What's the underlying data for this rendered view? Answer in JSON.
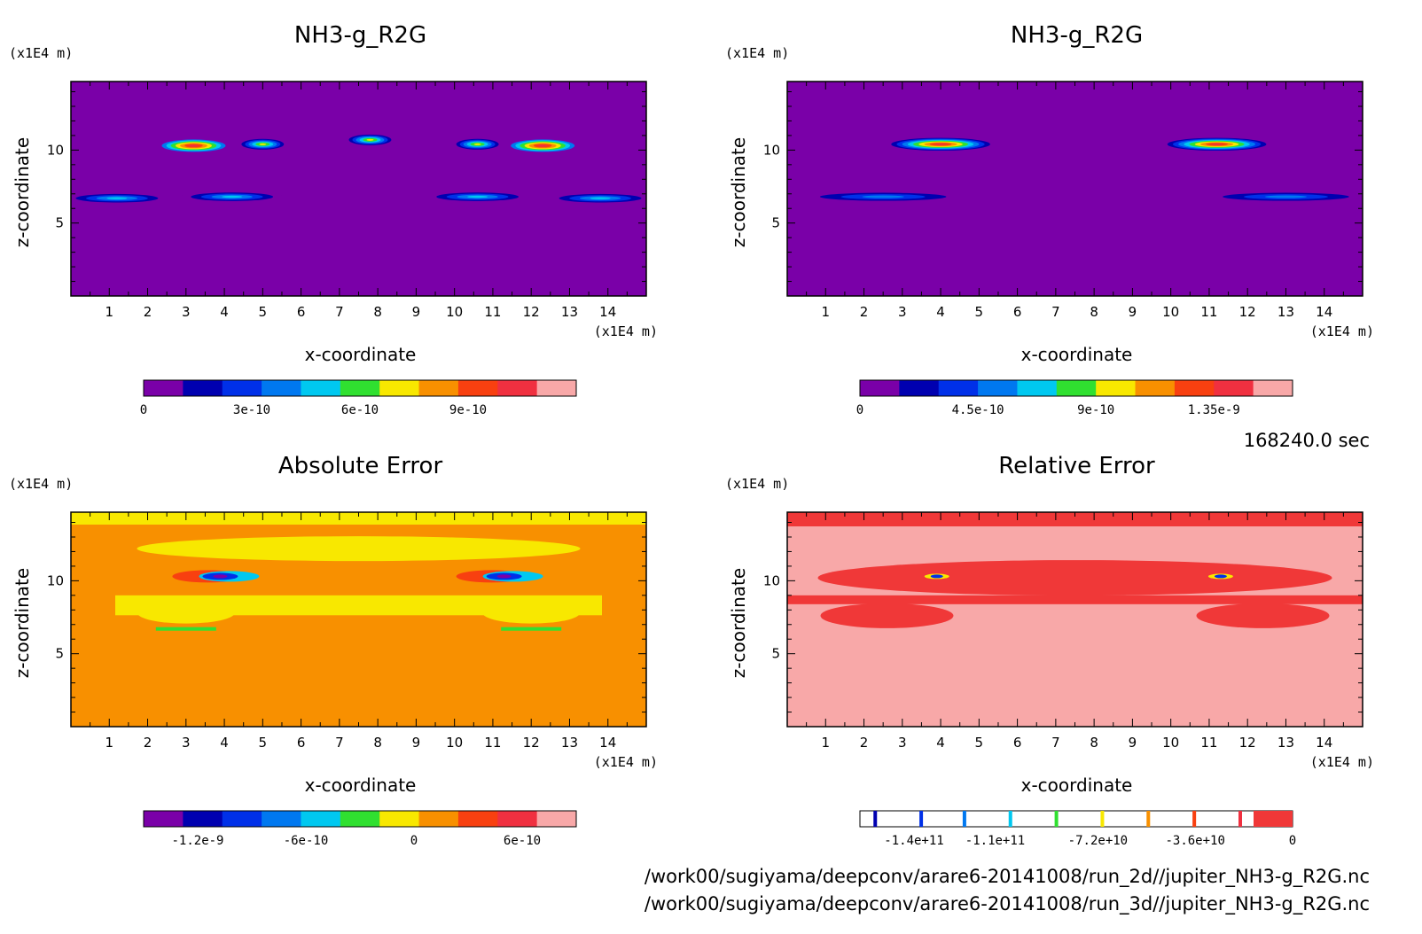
{
  "palette": {
    "seq12": [
      "#7a00a8",
      "#0000b0",
      "#0030e8",
      "#0078f0",
      "#00c8f0",
      "#30e030",
      "#f8e800",
      "#f89000",
      "#f84010",
      "#f03040",
      "#f8a8a8"
    ],
    "rel": {
      "bg": "#f8a8a8",
      "band": "#f03838",
      "line": "#000000"
    }
  },
  "footer": {
    "time": "168240.0 sec",
    "path1": "/work00/sugiyama/deepconv/arare6-20141008/run_2d//jupiter_NH3-g_R2G.nc",
    "path2": "/work00/sugiyama/deepconv/arare6-20141008/run_3d//jupiter_NH3-g_R2G.nc"
  },
  "chart_data": [
    {
      "type": "heatmap",
      "title": "NH3-g_R2G",
      "xlabel": "x-coordinate",
      "ylabel": "z-coordinate",
      "xunit": "(x1E4 m)",
      "yunit": "(x1E4 m)",
      "xticks": [
        "1",
        "2",
        "3",
        "4",
        "5",
        "6",
        "7",
        "8",
        "9",
        "10",
        "11",
        "12",
        "13",
        "14"
      ],
      "yticks": [
        "5",
        "10"
      ],
      "xlim": [
        0,
        15
      ],
      "ylim": [
        0,
        14.7
      ],
      "colorbar": {
        "ticks": [
          "0",
          "3e-10",
          "6e-10",
          "9e-10"
        ],
        "range": [
          0,
          1.2e-09
        ]
      },
      "features": [
        {
          "x": 3.2,
          "z": 10.3,
          "value": 1e-09
        },
        {
          "x": 5.0,
          "z": 10.4,
          "value": 4e-10
        },
        {
          "x": 7.8,
          "z": 10.7,
          "value": 1.5e-10
        },
        {
          "x": 10.6,
          "z": 10.4,
          "value": 4e-10
        },
        {
          "x": 12.3,
          "z": 10.3,
          "value": 1e-09
        },
        {
          "x": 1.2,
          "z": 6.7,
          "value": 5e-10
        },
        {
          "x": 4.2,
          "z": 6.8,
          "value": 3e-10
        },
        {
          "x": 10.6,
          "z": 6.8,
          "value": 3e-10
        },
        {
          "x": 13.8,
          "z": 6.7,
          "value": 5e-10
        }
      ]
    },
    {
      "type": "heatmap",
      "title": "NH3-g_R2G",
      "xlabel": "x-coordinate",
      "ylabel": "z-coordinate",
      "xunit": "(x1E4 m)",
      "yunit": "(x1E4 m)",
      "xticks": [
        "1",
        "2",
        "3",
        "4",
        "5",
        "6",
        "7",
        "8",
        "9",
        "10",
        "11",
        "12",
        "13",
        "14"
      ],
      "yticks": [
        "5",
        "10"
      ],
      "xlim": [
        0,
        15
      ],
      "ylim": [
        0,
        14.7
      ],
      "colorbar": {
        "ticks": [
          "0",
          "4.5e-10",
          "9e-10",
          "1.35e-9"
        ],
        "range": [
          0,
          1.65e-09
        ]
      },
      "features": [
        {
          "x": 4.0,
          "z": 10.4,
          "value": 1.4e-09
        },
        {
          "x": 11.2,
          "z": 10.4,
          "value": 1.4e-09
        },
        {
          "x": 2.5,
          "z": 6.8,
          "value": 3e-10
        },
        {
          "x": 13.0,
          "z": 6.8,
          "value": 3e-10
        }
      ]
    },
    {
      "type": "heatmap",
      "title": "Absolute Error",
      "xlabel": "x-coordinate",
      "ylabel": "z-coordinate",
      "xunit": "(x1E4 m)",
      "yunit": "(x1E4 m)",
      "xticks": [
        "1",
        "2",
        "3",
        "4",
        "5",
        "6",
        "7",
        "8",
        "9",
        "10",
        "11",
        "12",
        "13",
        "14"
      ],
      "yticks": [
        "5",
        "10"
      ],
      "xlim": [
        0,
        15
      ],
      "ylim": [
        0,
        14.7
      ],
      "colorbar": {
        "ticks": [
          "-1.2e-9",
          "-6e-10",
          "0",
          "6e-10"
        ],
        "range": [
          -1.5e-09,
          9e-10
        ]
      },
      "features": [
        {
          "x": 3.8,
          "z": 10.3,
          "value": -1.2e-09
        },
        {
          "x": 11.2,
          "z": 10.3,
          "value": -1.2e-09
        },
        {
          "x": 3.0,
          "z": 6.7,
          "value": -3e-10
        },
        {
          "x": 12.0,
          "z": 6.7,
          "value": -3e-10
        }
      ]
    },
    {
      "type": "heatmap",
      "title": "Relative Error",
      "xlabel": "x-coordinate",
      "ylabel": "z-coordinate",
      "xunit": "(x1E4 m)",
      "yunit": "(x1E4 m)",
      "xticks": [
        "1",
        "2",
        "3",
        "4",
        "5",
        "6",
        "7",
        "8",
        "9",
        "10",
        "11",
        "12",
        "13",
        "14"
      ],
      "yticks": [
        "5",
        "10"
      ],
      "xlim": [
        0,
        15
      ],
      "ylim": [
        0,
        14.7
      ],
      "colorbar": {
        "ticks": [
          "-1.4e+11",
          "-1.1e+11",
          "-7.2e+10",
          "-3.6e+10",
          "0"
        ],
        "range": [
          -160000000000.0,
          0
        ]
      },
      "features": [
        {
          "x": 3.9,
          "z": 10.3,
          "value": -140000000000.0
        },
        {
          "x": 11.3,
          "z": 10.3,
          "value": -140000000000.0
        }
      ]
    }
  ]
}
